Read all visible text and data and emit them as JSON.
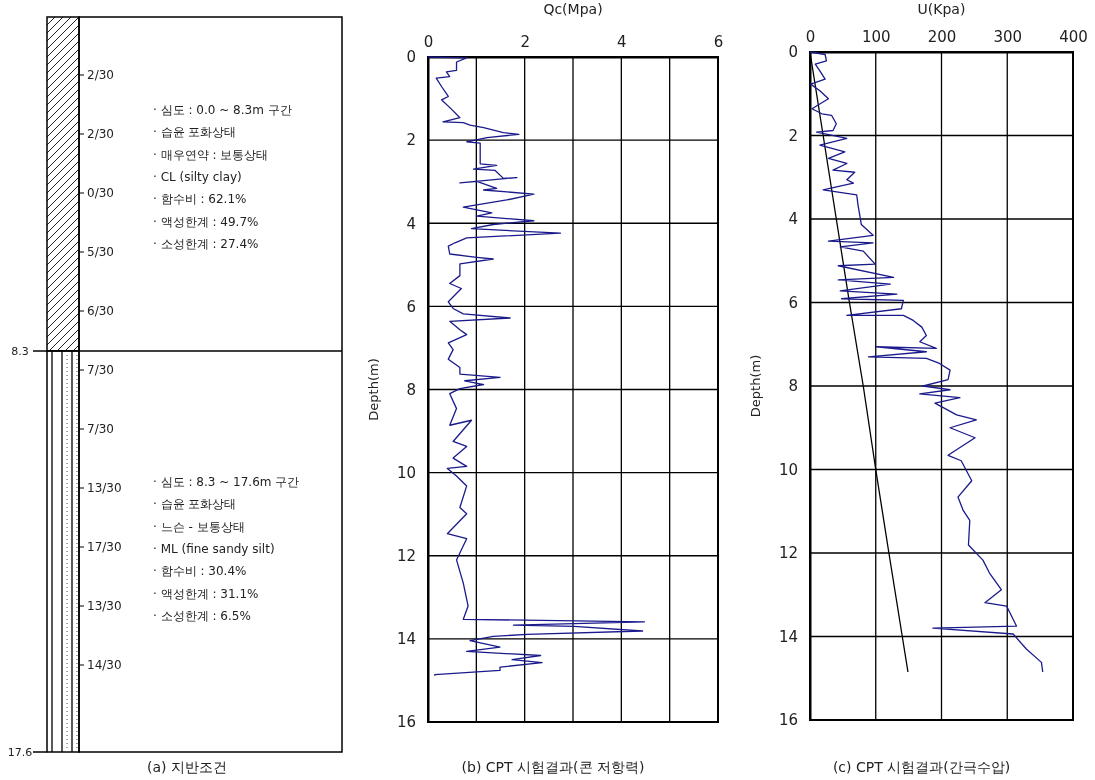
{
  "chart_data": [
    {
      "type": "other",
      "title": "(a) 지반조건",
      "annotations": [
        "8.3",
        "17.6",
        "2/30",
        "2/30",
        "0/30",
        "5/30",
        "6/30",
        "7/30",
        "7/30",
        "13/30",
        "17/30",
        "13/30",
        "14/30",
        "· 심도 : 0.0 ~ 8.3m 구간",
        "· 습윤 포화상태",
        "· 매우연약 : 보통상태",
        "· CL (silty clay)",
        "· 함수비 : 62.1%",
        "· 액성한계 : 49.7%",
        "· 소성한계 : 27.4%",
        "· 심도 : 8.3 ~ 17.6m 구간",
        "· 습윤 포화상태",
        "· 느슨 - 보통상태",
        "· ML (fine sandy silt)",
        "· 함수비 : 30.4%",
        "· 액성한계 : 31.1%",
        "· 소성한계 : 6.5%"
      ]
    },
    {
      "type": "line",
      "title": "(b) CPT 시험결과(콘 저항력)",
      "xlabel": "Qc(Mpa)",
      "ylabel": "Depth(m)",
      "xlim": [
        0,
        6
      ],
      "xticks": [
        0,
        {
          "value": 1,
          "label": null
        },
        2,
        {
          "value": 3,
          "label": null
        },
        4,
        {
          "value": 5,
          "label": null
        },
        6
      ],
      "ylim": [
        16,
        0
      ],
      "yticks": [
        0,
        2,
        4,
        6,
        8,
        10,
        12,
        14,
        16
      ],
      "grid": true,
      "series": [
        {
          "color": "#1a1a8c",
          "x": [
            0,
            0.8,
            0.59,
            0.59,
            0.38,
            0.45,
            0.17,
            0.28,
            0.42,
            0.28,
            0.49,
            0.66,
            0.31,
            0.73,
            0.87,
            1.15,
            1.56,
            1.88,
            1.22,
            0.8,
            1.08,
            1.08,
            1.42,
            0.94,
            1.39,
            1.56,
            1.84,
            0.66,
            1.01,
            1.42,
            1.15,
            2.19,
            1.63,
            0.73,
            1.32,
            1.01,
            2.19,
            1.35,
            0.9,
            2.74,
            0.8,
            0.56,
            0.42,
            0.45,
            1.01,
            1.35,
            0.66,
            0.66,
            0.45,
            0.69,
            0.42,
            0.52,
            0.73,
            1.7,
            0.45,
            0.66,
            0.8,
            0.42,
            0.52,
            0.42,
            0.66,
            0.66,
            1.49,
            0.76,
            1.15,
            0.66,
            0.45,
            0.59,
            0.45,
            0.9,
            0.52,
            0.8,
            0.52,
            0.8,
            0.4,
            0.59,
            0.8,
            0.66,
            0.8,
            0.4,
            0.8,
            0.59,
            0.73,
            0.83,
            0.73,
            4.48,
            1.77,
            3.02,
            4.44,
            2.05,
            1.35,
            0.87,
            1.49,
            0.8,
            2.33,
            1.74,
            2.36,
            1.49,
            1.49,
            0.14,
            0.14
          ],
          "values": [
            0,
            0.02,
            0.12,
            0.32,
            0.36,
            0.47,
            0.51,
            0.71,
            0.95,
            1.03,
            1.26,
            1.46,
            1.56,
            1.58,
            1.64,
            1.7,
            1.82,
            1.86,
            1.94,
            2.04,
            2.07,
            2.57,
            2.61,
            2.7,
            2.73,
            2.92,
            2.9,
            3.03,
            2.99,
            3.16,
            3.2,
            3.3,
            3.44,
            3.61,
            3.75,
            3.83,
            3.94,
            4.03,
            4.13,
            4.24,
            4.35,
            4.47,
            4.55,
            4.74,
            4.82,
            4.86,
            4.98,
            5.26,
            5.45,
            5.57,
            5.89,
            6.05,
            6.18,
            6.28,
            6.36,
            6.56,
            6.68,
            6.88,
            7.04,
            7.27,
            7.47,
            7.63,
            7.71,
            7.79,
            7.88,
            7.98,
            8.1,
            8.46,
            8.86,
            8.74,
            9.25,
            9.37,
            9.65,
            9.85,
            9.9,
            10.08,
            10.32,
            10.84,
            10.99,
            11.47,
            11.59,
            12.1,
            12.66,
            13.21,
            13.53,
            13.59,
            13.67,
            13.7,
            13.81,
            13.89,
            13.94,
            14.04,
            14.2,
            14.3,
            14.4,
            14.5,
            14.57,
            14.68,
            14.76,
            14.86,
            14.89
          ]
        }
      ]
    },
    {
      "type": "line",
      "title": "(c) CPT 시험결과(간극수압)",
      "xlabel": "U(Kpa)",
      "ylabel": "Depth(m)",
      "xlim": [
        0,
        400
      ],
      "xticks": [
        0,
        100,
        200,
        300,
        400
      ],
      "ylim": [
        16,
        0
      ],
      "yticks": [
        0,
        2,
        4,
        6,
        8,
        10,
        12,
        14,
        16
      ],
      "grid": true,
      "series": [
        {
          "color": "#000000",
          "x": [
            0,
            20,
            40,
            60,
            81,
            100,
            120,
            149
          ],
          "values": [
            0,
            2,
            4,
            6,
            8,
            10,
            12,
            14.85
          ]
        },
        {
          "color": "#1a1a8c",
          "x": [
            0,
            23,
            25,
            8,
            15,
            23,
            1,
            15,
            28,
            3,
            18,
            33,
            40,
            35,
            10,
            56,
            15,
            53,
            28,
            56,
            35,
            68,
            56,
            66,
            20,
            71,
            73,
            78,
            96,
            28,
            96,
            46,
            81,
            99,
            43,
            127,
            43,
            122,
            46,
            132,
            48,
            142,
            139,
            56,
            142,
            157,
            170,
            177,
            167,
            192,
            101,
            177,
            89,
            177,
            197,
            213,
            210,
            172,
            213,
            167,
            228,
            190,
            223,
            253,
            213,
            251,
            210,
            230,
            238,
            246,
            225,
            233,
            243,
            241,
            263,
            273,
            291,
            266,
            299,
            314,
            187,
            309,
            329,
            352,
            354
          ],
          "values": [
            0,
            0.06,
            0.21,
            0.29,
            0.45,
            0.65,
            0.77,
            0.93,
            1.12,
            1.36,
            1.48,
            1.52,
            1.72,
            1.88,
            1.92,
            2.07,
            2.23,
            2.39,
            2.55,
            2.67,
            2.83,
            2.88,
            3.06,
            3.14,
            3.3,
            3.42,
            3.66,
            4.13,
            4.39,
            4.53,
            4.57,
            4.67,
            4.77,
            5.08,
            5.12,
            5.4,
            5.46,
            5.56,
            5.72,
            5.8,
            5.91,
            5.95,
            6.15,
            6.31,
            6.31,
            6.43,
            6.59,
            6.79,
            6.94,
            7.1,
            7.06,
            7.18,
            7.3,
            7.34,
            7.46,
            7.62,
            7.85,
            8.0,
            8.09,
            8.19,
            8.28,
            8.41,
            8.69,
            8.81,
            9.0,
            9.24,
            9.66,
            9.79,
            10.03,
            10.27,
            10.66,
            10.98,
            11.22,
            11.81,
            12.17,
            12.48,
            12.88,
            13.19,
            13.27,
            13.75,
            13.8,
            13.94,
            14.3,
            14.62,
            14.85
          ]
        }
      ]
    }
  ]
}
